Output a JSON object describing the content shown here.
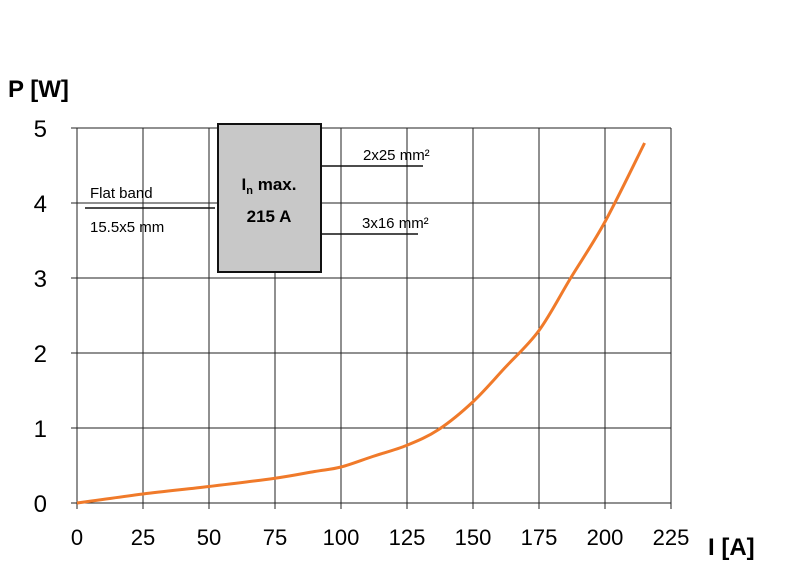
{
  "chart_data": {
    "type": "line",
    "title": "",
    "xlabel": "I [A]",
    "ylabel": "P [W]",
    "xlim": [
      0,
      225
    ],
    "ylim": [
      0,
      5
    ],
    "xticks": [
      0,
      25,
      50,
      75,
      100,
      125,
      150,
      175,
      200,
      225
    ],
    "yticks": [
      0,
      1,
      2,
      3,
      4,
      5
    ],
    "grid": true,
    "line_color": "#f07a2a",
    "series": [
      {
        "x": [
          0,
          25,
          50,
          75,
          90,
          100,
          112,
          125,
          137,
          150,
          162,
          175,
          187,
          200,
          215
        ],
        "y": [
          0,
          0.12,
          0.22,
          0.33,
          0.42,
          0.48,
          0.62,
          0.77,
          0.98,
          1.35,
          1.8,
          2.3,
          3.0,
          3.75,
          4.8
        ]
      }
    ],
    "annotations": {
      "box_line1_main": "I",
      "box_line1_sub": "n",
      "box_line1_rest": " max.",
      "box_line2": "215 A",
      "left_top": "Flat band",
      "left_bottom": "15.5x5 mm",
      "right_top": "2x25 mm²",
      "right_bottom": "3x16 mm²"
    }
  }
}
